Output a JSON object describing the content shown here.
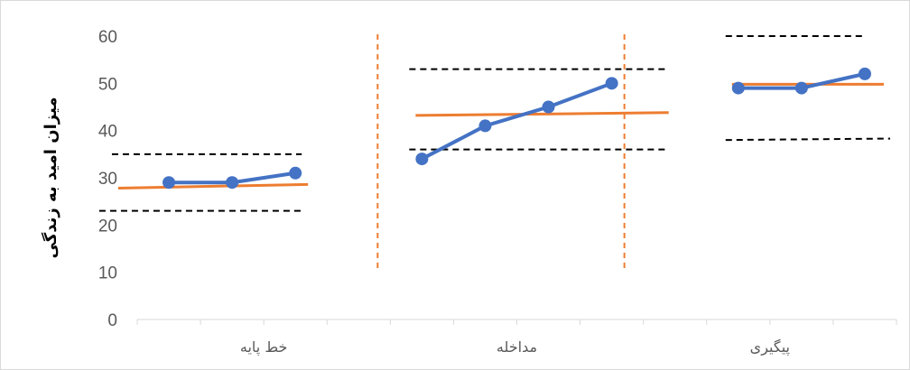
{
  "chart_data": {
    "type": "line",
    "ylabel": "میزان امید به زندگی",
    "ylim": [
      0,
      60
    ],
    "yticks": [
      0,
      10,
      20,
      30,
      40,
      50,
      60
    ],
    "grid": false,
    "x_slots": 12,
    "categories": [
      {
        "label": "خط پایه",
        "slot_start": 0,
        "slot_end": 4
      },
      {
        "label": "مداخله",
        "slot_start": 4,
        "slot_end": 8
      },
      {
        "label": "پیگیری",
        "slot_start": 8,
        "slot_end": 12
      }
    ],
    "series": [
      {
        "phase": "خط پایه",
        "x": [
          1,
          2,
          3
        ],
        "values": [
          29,
          29,
          31
        ],
        "trend": [
          [
            0.2,
            27.8
          ],
          [
            3.2,
            28.6
          ]
        ],
        "band_upper": [
          [
            0.1,
            35
          ],
          [
            3.1,
            35
          ]
        ],
        "band_lower": [
          [
            -0.1,
            23
          ],
          [
            3.1,
            23
          ]
        ]
      },
      {
        "phase": "مداخله",
        "x": [
          5,
          6,
          7,
          8
        ],
        "values": [
          34,
          41,
          45,
          50
        ],
        "trend": [
          [
            4.9,
            43.2
          ],
          [
            8.9,
            43.8
          ]
        ],
        "band_upper": [
          [
            4.8,
            53
          ],
          [
            8.9,
            53
          ]
        ],
        "band_lower": [
          [
            4.8,
            36
          ],
          [
            8.9,
            36
          ]
        ]
      },
      {
        "phase": "پیگیری",
        "x": [
          10,
          11,
          12
        ],
        "values": [
          49,
          49,
          52
        ],
        "trend": [
          [
            9.9,
            49.8
          ],
          [
            12.3,
            49.8
          ]
        ],
        "band_upper": [
          [
            9.8,
            60
          ],
          [
            12.0,
            60
          ]
        ],
        "band_lower": [
          [
            9.8,
            38
          ],
          [
            12.4,
            38.3
          ]
        ]
      }
    ],
    "phase_change_lines_x": [
      3.8,
      7.7
    ],
    "phase_change_range": [
      10.5,
      60
    ],
    "colors": {
      "data_line": "#4472C4",
      "trend_line": "#ED7D31",
      "band_line": "#000000",
      "phase_line": "#ED7D31",
      "axis": "#d9d9d9",
      "text": "#595959"
    }
  }
}
